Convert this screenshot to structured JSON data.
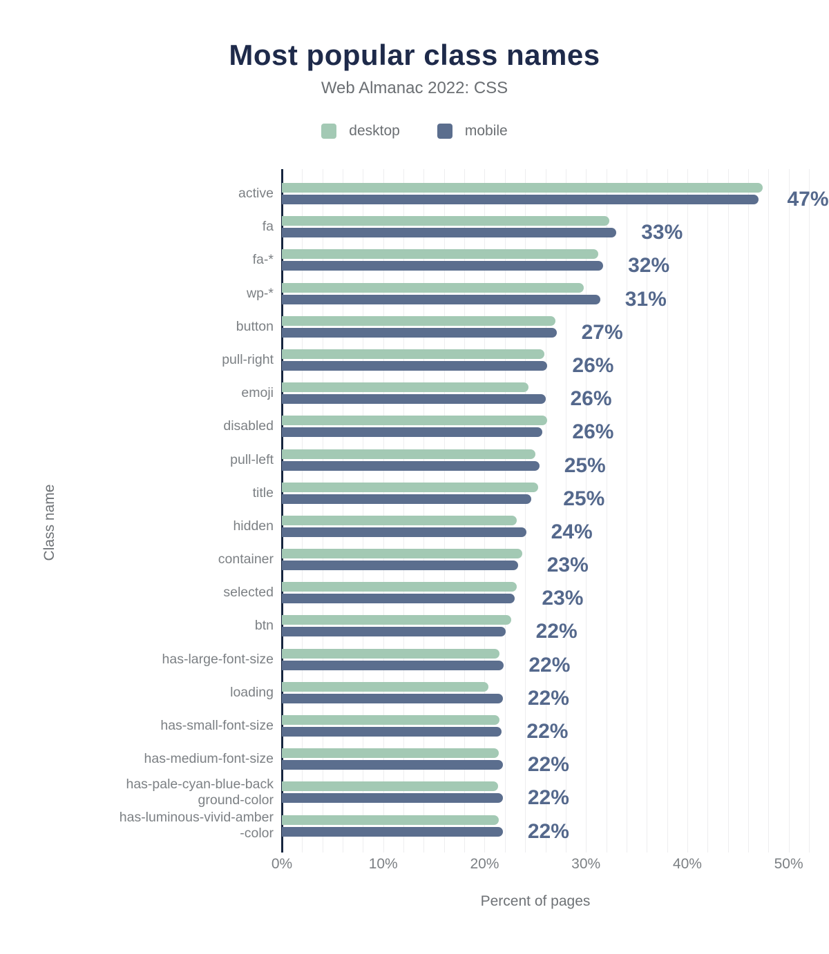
{
  "header": {
    "title": "Most popular class names",
    "subtitle": "Web Almanac 2022: CSS"
  },
  "legend": {
    "items": [
      {
        "label": "desktop",
        "color": "#a3c9b4"
      },
      {
        "label": "mobile",
        "color": "#5b6e8e"
      }
    ]
  },
  "axes": {
    "x_title": "Percent of pages",
    "y_title": "Class name"
  },
  "colors": {
    "title": "#1e2a4a",
    "subtitle": "#6b6f73",
    "desktop_bar": "#a3c9b4",
    "mobile_bar": "#5b6e8e",
    "value_label": "#54688c",
    "axis_line": "#17263f",
    "gridline": "#ededef",
    "tick_label": "#7c8084"
  },
  "chart_data": {
    "type": "bar",
    "orientation": "horizontal",
    "title": "Most popular class names",
    "subtitle": "Web Almanac 2022: CSS",
    "xlabel": "Percent of pages",
    "ylabel": "Class name",
    "xlim": [
      0,
      50
    ],
    "grid": "vertical gridlines every 2%",
    "legend_position": "top",
    "x_ticks": [
      {
        "label": "0%",
        "value": 0
      },
      {
        "label": "10%",
        "value": 10
      },
      {
        "label": "20%",
        "value": 20
      },
      {
        "label": "30%",
        "value": 30
      },
      {
        "label": "40%",
        "value": 40
      },
      {
        "label": "50%",
        "value": 50
      }
    ],
    "categories": [
      "active",
      "fa",
      "fa-*",
      "wp-*",
      "button",
      "pull-right",
      "emoji",
      "disabled",
      "pull-left",
      "title",
      "hidden",
      "container",
      "selected",
      "btn",
      "has-large-font-size",
      "loading",
      "has-small-font-size",
      "has-medium-font-size",
      "has-pale-cyan-blue-background-color",
      "has-luminous-vivid-amber-color"
    ],
    "category_display_lines": [
      [
        "active"
      ],
      [
        "fa"
      ],
      [
        "fa-*"
      ],
      [
        "wp-*"
      ],
      [
        "button"
      ],
      [
        "pull-right"
      ],
      [
        "emoji"
      ],
      [
        "disabled"
      ],
      [
        "pull-left"
      ],
      [
        "title"
      ],
      [
        "hidden"
      ],
      [
        "container"
      ],
      [
        "selected"
      ],
      [
        "btn"
      ],
      [
        "has-large-font-size"
      ],
      [
        "loading"
      ],
      [
        "has-small-font-size"
      ],
      [
        "has-medium-font-size"
      ],
      [
        "has-pale-cyan-blue-back",
        "ground-color"
      ],
      [
        "has-luminous-vivid-amber",
        "-color"
      ]
    ],
    "series": [
      {
        "name": "desktop",
        "values": [
          47.4,
          32.3,
          31.2,
          29.8,
          27.0,
          25.9,
          24.3,
          26.2,
          25.0,
          25.3,
          23.2,
          23.7,
          23.2,
          22.6,
          21.5,
          20.4,
          21.5,
          21.4,
          21.3,
          21.4
        ]
      },
      {
        "name": "mobile",
        "values": [
          47.0,
          33.0,
          31.7,
          31.4,
          27.1,
          26.2,
          26.0,
          25.7,
          25.4,
          24.6,
          24.1,
          23.3,
          23.0,
          22.1,
          21.9,
          21.8,
          21.7,
          21.8,
          21.8,
          21.8
        ]
      }
    ],
    "value_labels": [
      "47%",
      "33%",
      "32%",
      "31%",
      "27%",
      "26%",
      "26%",
      "26%",
      "25%",
      "25%",
      "24%",
      "23%",
      "23%",
      "22%",
      "22%",
      "22%",
      "22%",
      "22%",
      "22%",
      "22%"
    ]
  }
}
